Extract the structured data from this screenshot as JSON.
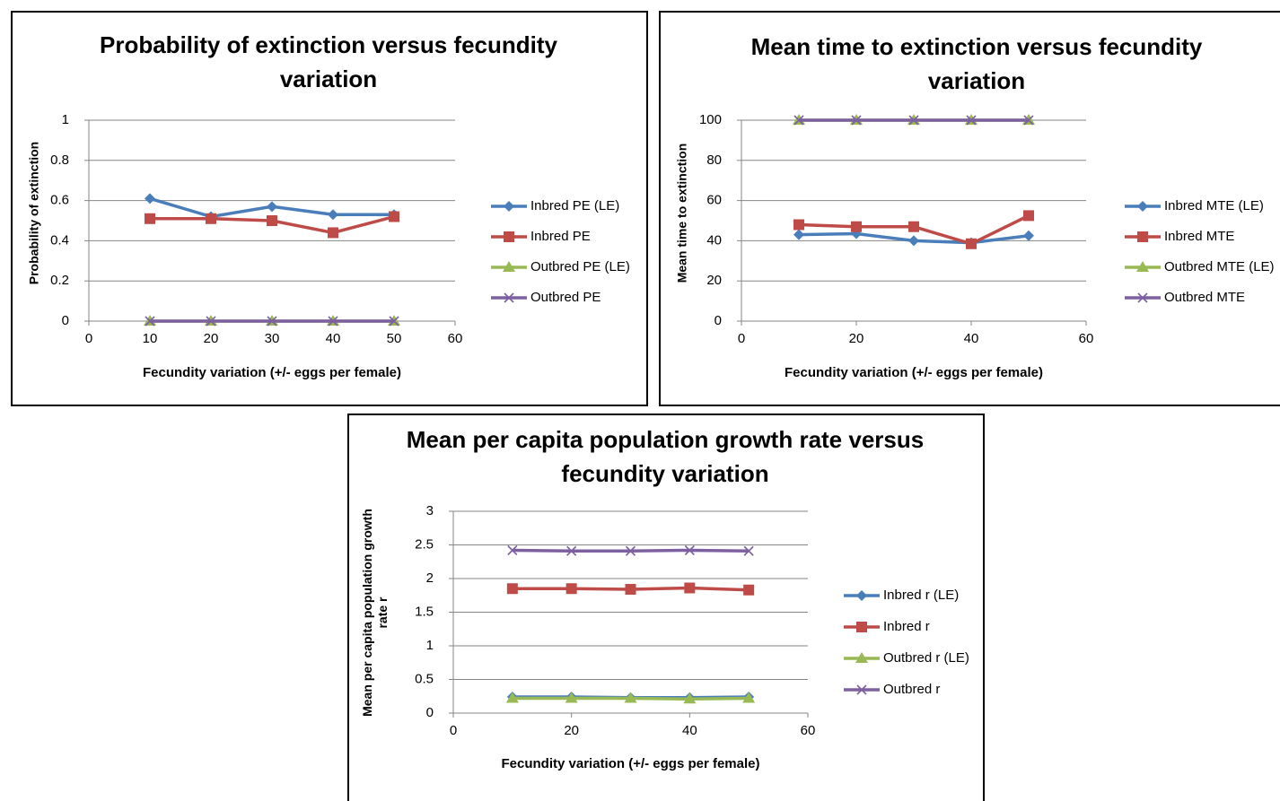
{
  "chart_data": [
    {
      "type": "line",
      "title": "Probability of extinction versus fecundity variation",
      "x_label": "Fecundity variation (+/- eggs per female)",
      "y_label": "Probability of extinction",
      "x": [
        10,
        20,
        30,
        40,
        50
      ],
      "series": [
        {
          "name": "Inbred PE (LE)",
          "color": "#4a7ebb",
          "marker": "diamond",
          "values": [
            0.61,
            0.52,
            0.57,
            0.53,
            0.53
          ]
        },
        {
          "name": "Inbred PE",
          "color": "#be4b48",
          "marker": "square",
          "values": [
            0.51,
            0.51,
            0.5,
            0.44,
            0.52
          ]
        },
        {
          "name": "Outbred PE (LE)",
          "color": "#98b954",
          "marker": "triangle",
          "values": [
            0,
            0,
            0,
            0,
            0
          ]
        },
        {
          "name": "Outbred PE",
          "color": "#7d60a0",
          "marker": "x",
          "values": [
            0,
            0,
            0,
            0,
            0
          ]
        }
      ],
      "xlim": [
        0,
        60
      ],
      "xticks": [
        0,
        10,
        20,
        30,
        40,
        50,
        60
      ],
      "ylim": [
        0,
        1
      ],
      "yticks": [
        0,
        0.2,
        0.4,
        0.6,
        0.8,
        1
      ],
      "grid": true,
      "legend": "right"
    },
    {
      "type": "line",
      "title": "Mean time to extinction versus fecundity variation",
      "x_label": "Fecundity variation (+/- eggs per female)",
      "y_label": "Mean time to extinction",
      "x": [
        10,
        20,
        30,
        40,
        50
      ],
      "series": [
        {
          "name": "Inbred MTE (LE)",
          "color": "#4a7ebb",
          "marker": "diamond",
          "values": [
            43,
            43.5,
            40,
            39,
            42.5
          ]
        },
        {
          "name": "Inbred MTE",
          "color": "#be4b48",
          "marker": "square",
          "values": [
            48,
            47,
            47,
            38.5,
            52.5
          ]
        },
        {
          "name": "Outbred MTE (LE)",
          "color": "#98b954",
          "marker": "triangle",
          "values": [
            100,
            100,
            100,
            100,
            100
          ]
        },
        {
          "name": "Outbred MTE",
          "color": "#7d60a0",
          "marker": "x",
          "values": [
            100,
            100,
            100,
            100,
            100
          ]
        }
      ],
      "xlim": [
        0,
        60
      ],
      "xticks": [
        0,
        20,
        40,
        60
      ],
      "ylim": [
        0,
        100
      ],
      "yticks": [
        0,
        20,
        40,
        60,
        80,
        100
      ],
      "grid": true,
      "legend": "right"
    },
    {
      "type": "line",
      "title": "Mean per capita population growth rate versus fecundity variation",
      "x_label": "Fecundity variation (+/- eggs per female)",
      "y_label": "Mean per capita population growth rate r",
      "x": [
        10,
        20,
        30,
        40,
        50
      ],
      "series": [
        {
          "name": "Inbred r (LE)",
          "color": "#4a7ebb",
          "marker": "diamond",
          "values": [
            0.24,
            0.24,
            0.23,
            0.23,
            0.24
          ]
        },
        {
          "name": "Inbred r",
          "color": "#be4b48",
          "marker": "square",
          "values": [
            1.85,
            1.85,
            1.84,
            1.86,
            1.83
          ]
        },
        {
          "name": "Outbred r (LE)",
          "color": "#98b954",
          "marker": "triangle",
          "values": [
            0.22,
            0.22,
            0.22,
            0.21,
            0.22
          ]
        },
        {
          "name": "Outbred r",
          "color": "#7d60a0",
          "marker": "x",
          "values": [
            2.42,
            2.41,
            2.41,
            2.42,
            2.41
          ]
        }
      ],
      "xlim": [
        0,
        60
      ],
      "xticks": [
        0,
        20,
        40,
        60
      ],
      "ylim": [
        0,
        3
      ],
      "yticks": [
        0,
        0.5,
        1,
        1.5,
        2,
        2.5,
        3
      ],
      "grid": true,
      "legend": "right"
    }
  ]
}
